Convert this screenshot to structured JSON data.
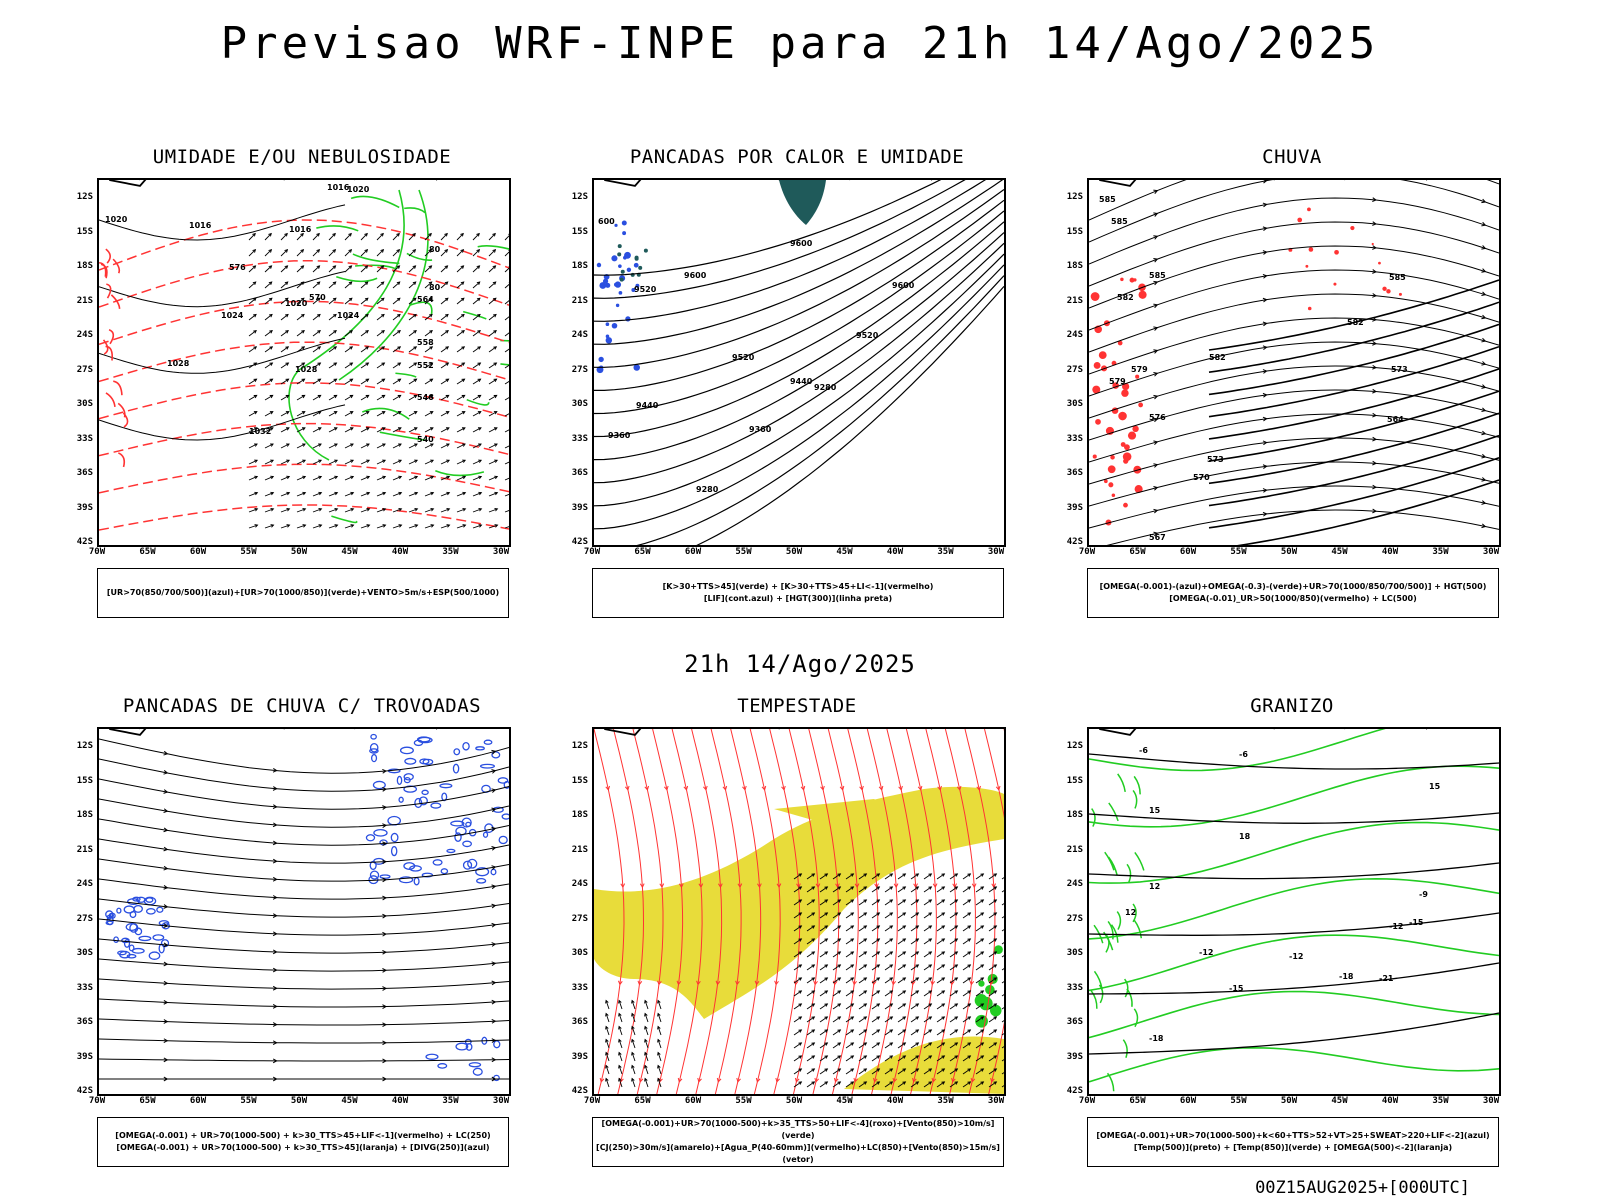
{
  "title": "Previsao WRF-INPE  para 21h 14/Ago/2025",
  "mid_title": "21h 14/Ago/2025",
  "footer": "00Z15AUG2025+[000UTC]",
  "lat_ticks": [
    "12S",
    "15S",
    "18S",
    "21S",
    "24S",
    "27S",
    "30S",
    "33S",
    "36S",
    "39S",
    "42S"
  ],
  "lon_ticks": [
    "70W",
    "65W",
    "60W",
    "55W",
    "50W",
    "45W",
    "40W",
    "35W",
    "30W"
  ],
  "colors": {
    "rh_blue": "#2a4fe0",
    "rh_green": "#22cc22",
    "red": "#ff3333",
    "yellow": "#e8dc3a",
    "teal": "#1f5a5a",
    "black": "#000000"
  },
  "panels": [
    {
      "title": "UMIDADE E/OU NEBULOSIDADE",
      "legend": [
        "[UR>70(850/700/500)](azul)+[UR>70(1000/850)](verde)+VENTO>5m/s+ESP(500/1000)"
      ],
      "labels": [
        "1016",
        "1020",
        "1016",
        "1016",
        "1020",
        "1020",
        "1024",
        "1024",
        "1028",
        "1028",
        "1032",
        "576",
        "570",
        "564",
        "558",
        "552",
        "546",
        "540",
        "80",
        "80"
      ]
    },
    {
      "title": "PANCADAS POR CALOR E UMIDADE",
      "legend": [
        "[K>30+TTS>45](verde) + [K>30+TTS>45+LI<-1](vermelho)",
        "[LIF](cont.azul) + [HGT(300)](linha preta)"
      ],
      "labels": [
        "9600",
        "9600",
        "9600",
        "9520",
        "9520",
        "9520",
        "9440",
        "9440",
        "9360",
        "9360",
        "9280",
        "9280",
        "600"
      ]
    },
    {
      "title": "CHUVA",
      "legend": [
        "[OMEGA(-0.001)-(azul)+OMEGA(-0.3)-(verde)+UR>70(1000/850/700/500)] + HGT(500)",
        "[OMEGA(-0.01)_UR>50(1000/850)(vermelho) + LC(500)"
      ],
      "labels": [
        "585",
        "585",
        "585",
        "585",
        "582",
        "582",
        "582",
        "579",
        "579",
        "576",
        "573",
        "573",
        "570",
        "567",
        "564"
      ]
    },
    {
      "title": "PANCADAS DE CHUVA C/ TROVOADAS",
      "legend": [
        "[OMEGA(-0.001) + UR>70(1000-500) + k>30_TTS>45+LIF<-1](vermelho) + LC(250)",
        "[OMEGA(-0.001) + UR>70(1000-500) + k>30_TTS>45](laranja) + [DIVG(250)](azul)"
      ],
      "labels": []
    },
    {
      "title": "TEMPESTADE",
      "legend": [
        "[OMEGA(-0.001)+UR>70(1000-500)+k>35_TTS>50+LIF<-4](roxo)+[Vento(850)>10m/s](verde)",
        "[CJ(250)>30m/s](amarelo)+[Agua_P(40-60mm)](vermelho)+LC(850)+[Vento(850)>15m/s](vetor)"
      ],
      "labels": []
    },
    {
      "title": "GRANIZO",
      "legend": [
        "[OMEGA(-0.001)+UR>70(1000-500)+k<60+TTS>52+VT>25+SWEAT>220+LIF<-2](azul)",
        "[Temp(500)](preto) + [Temp(850)](verde) + [OMEGA(500)<-2](laranja)"
      ],
      "labels": [
        "-6",
        "-6",
        "-9",
        "-12",
        "-12",
        "-12",
        "-15",
        "-15",
        "-18",
        "-18",
        "-21",
        "12",
        "15",
        "18",
        "12",
        "15"
      ]
    }
  ]
}
